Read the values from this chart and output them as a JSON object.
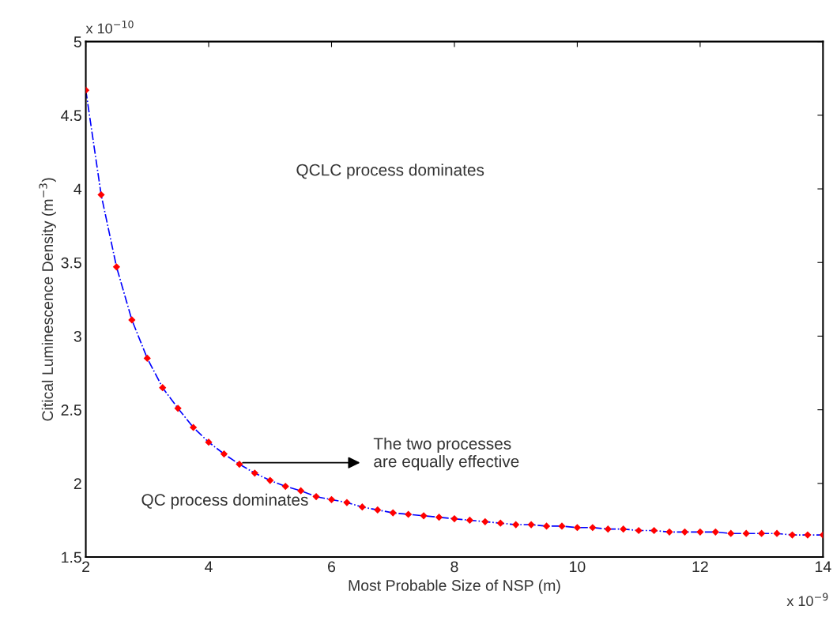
{
  "chart_data": {
    "type": "line",
    "xlabel": "Most Probable Size of NSP (m)",
    "ylabel": "Citical Luminescence Density (m$^{−3}$)",
    "x": [
      2,
      2.25,
      2.5,
      2.75,
      3,
      3.25,
      3.5,
      3.75,
      4,
      4.25,
      4.5,
      4.75,
      5,
      5.25,
      5.5,
      5.75,
      6,
      6.25,
      6.5,
      6.75,
      7,
      7.25,
      7.5,
      7.75,
      8,
      8.25,
      8.5,
      8.75,
      9,
      9.25,
      9.5,
      9.75,
      10,
      10.25,
      10.5,
      10.75,
      11,
      11.25,
      11.5,
      11.75,
      12,
      12.25,
      12.5,
      12.75,
      13,
      13.25,
      13.5,
      13.75,
      14
    ],
    "series": [
      {
        "color": "#0000ff",
        "line_style": "dashed",
        "marker": "none",
        "values": [
          4.67,
          3.96,
          3.47,
          3.11,
          2.85,
          2.65,
          2.51,
          2.38,
          2.28,
          2.2,
          2.13,
          2.07,
          2.02,
          1.98,
          1.95,
          1.91,
          1.89,
          1.87,
          1.84,
          1.82,
          1.8,
          1.79,
          1.78,
          1.77,
          1.76,
          1.75,
          1.74,
          1.73,
          1.72,
          1.72,
          1.71,
          1.71,
          1.7,
          1.7,
          1.69,
          1.69,
          1.68,
          1.68,
          1.67,
          1.67,
          1.67,
          1.67,
          1.66,
          1.66,
          1.66,
          1.66,
          1.65,
          1.65,
          1.65
        ]
      },
      {
        "type": "scatter",
        "color": "#ff0000",
        "marker": "diamond",
        "values": [
          4.67,
          3.96,
          3.47,
          3.11,
          2.85,
          2.65,
          2.51,
          2.38,
          2.28,
          2.2,
          2.13,
          2.07,
          2.02,
          1.98,
          1.95,
          1.91,
          1.89,
          1.87,
          1.84,
          1.82,
          1.8,
          1.79,
          1.78,
          1.77,
          1.76,
          1.75,
          1.74,
          1.73,
          1.72,
          1.72,
          1.71,
          1.71,
          1.7,
          1.7,
          1.69,
          1.69,
          1.68,
          1.68,
          1.67,
          1.67,
          1.67,
          1.67,
          1.66,
          1.66,
          1.66,
          1.66,
          1.65,
          1.65,
          1.65
        ]
      }
    ],
    "xlim": [
      2,
      14
    ],
    "xticks": [
      2,
      4,
      6,
      8,
      10,
      12,
      14
    ],
    "ylim": [
      1.5,
      5
    ],
    "yticks": [
      1.5,
      2,
      2.5,
      3,
      3.5,
      4,
      4.5,
      5
    ],
    "grid": false,
    "legend": false,
    "annotations": [
      "x 10$^{−10}$",
      "x 10$^{−9}$",
      "QCLC process dominates",
      "QC process dominates",
      "The two processes\nare equally effective"
    ]
  }
}
